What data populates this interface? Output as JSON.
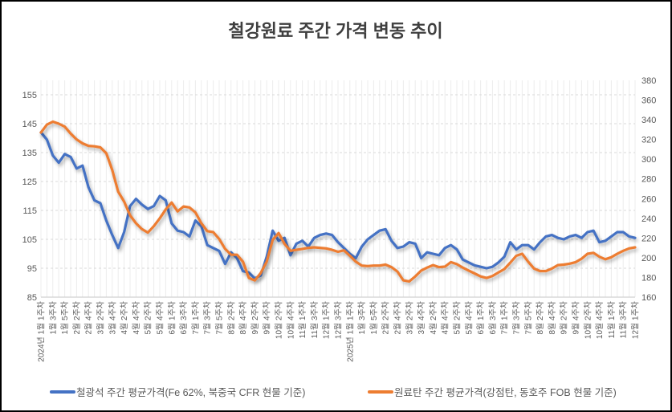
{
  "chart_data": {
    "type": "line",
    "title": "철강원료 주간 가격 변동 추이",
    "x_label_every_n_points": 2,
    "x_labels": [
      "2024년 1월 1주차",
      "1월 3주차",
      "1월 5주차",
      "2월 2주차",
      "2월 4주차",
      "3월 2주차",
      "3월 4주차",
      "4월 2주차",
      "4월 4주차",
      "5월 2주차",
      "5월 4주차",
      "6월 1주차",
      "6월 3주차",
      "7월 1주차",
      "7월 3주차",
      "7월 5주차",
      "8월 2주차",
      "8월 4주차",
      "9월 2주차",
      "9월 4주차",
      "10월 2주차",
      "10월 4주차",
      "11월 1주차",
      "11월 3주차",
      "12월 1주차",
      "12월 3주차",
      "2025년 1월 1주차",
      "1월 3주차",
      "1월 5주차",
      "2월 2주차",
      "2월 4주차",
      "3월 2주차",
      "3월 4주차",
      "4월 2주차",
      "4월 4주차",
      "5월 2주차",
      "5월 4주차",
      "6월 1주차",
      "6월 3주차",
      "7월 1주차",
      "7월 3주차",
      "7월 5주차",
      "8월 2주차",
      "8월 4주차",
      "9월 2주차",
      "9월 4주차",
      "10월 2주차",
      "10월 4주차",
      "11월 1주차",
      "11월 3주차",
      "12월 1주차"
    ],
    "left_axis": {
      "min": 85,
      "max": 160,
      "ticks": [
        85,
        95,
        105,
        115,
        125,
        135,
        145,
        155
      ]
    },
    "right_axis": {
      "min": 160,
      "max": 380,
      "ticks": [
        160,
        180,
        200,
        220,
        240,
        260,
        280,
        300,
        320,
        340,
        360,
        380
      ]
    },
    "grid": {
      "vertical_color": "#ECECEC",
      "horizontal_color": "#D9D9D9",
      "axis_line_color": "#D0D0D0"
    },
    "series": [
      {
        "name": "철광석 주간 평균가격(Fe 62%, 북중국 CFR 현물 기준)",
        "axis": "left",
        "color": "#4472C4",
        "values": [
          142,
          139.5,
          134,
          131.5,
          134.5,
          133.5,
          129.5,
          130.5,
          123,
          118.5,
          117.5,
          111.5,
          106.5,
          102,
          107.5,
          116.5,
          119,
          117,
          115.5,
          116.5,
          120,
          118.5,
          110.5,
          108,
          107.5,
          106,
          111.5,
          109.5,
          103,
          102,
          101,
          96.5,
          100.5,
          98.5,
          94,
          93.5,
          91.5,
          92.5,
          99,
          108,
          104.5,
          105.5,
          99.5,
          103.5,
          104.5,
          102.5,
          105.5,
          106.5,
          107,
          106.5,
          104,
          102,
          100,
          98.5,
          102.5,
          105,
          106.5,
          108,
          108.5,
          104.5,
          102,
          102.5,
          104,
          103.5,
          98.5,
          100.5,
          100,
          99.5,
          102,
          103,
          101.5,
          98,
          97,
          96,
          95.5,
          95,
          95.5,
          97,
          99,
          104,
          101.5,
          103,
          103,
          101.5,
          104,
          106,
          106.5,
          105.5,
          105,
          106,
          106.5,
          105.5,
          107.5,
          108,
          104,
          104.5,
          106,
          107.5,
          107.5,
          106,
          105.5
        ]
      },
      {
        "name": "원료탄 주간 평균가격(강점탄, 동호주 FOB 현물 기준)",
        "axis": "right",
        "color": "#ED7D31",
        "values": [
          327,
          335,
          338,
          336,
          333,
          326,
          320,
          316,
          313.5,
          313,
          312,
          306,
          289,
          267,
          257,
          243,
          235,
          229,
          225.5,
          232,
          240,
          249,
          256,
          247,
          252,
          251,
          246,
          235,
          227,
          226,
          219,
          209,
          203,
          203,
          196,
          179.5,
          177,
          184.5,
          196,
          218,
          225,
          214,
          207,
          208,
          209,
          210,
          210.5,
          210,
          209.5,
          208,
          206,
          207.5,
          202,
          196,
          192,
          191.5,
          192,
          192,
          193,
          190.5,
          186,
          177,
          176,
          181,
          187,
          190,
          192.5,
          190.5,
          191,
          195.5,
          193.5,
          190,
          187,
          184,
          181,
          179.5,
          181.5,
          185,
          188.5,
          195,
          202,
          204,
          196,
          189,
          186.5,
          186.5,
          189,
          192.5,
          193,
          194,
          195.5,
          199,
          204,
          205,
          201,
          198.5,
          200.5,
          204,
          207,
          209.5,
          210.5
        ]
      }
    ]
  }
}
